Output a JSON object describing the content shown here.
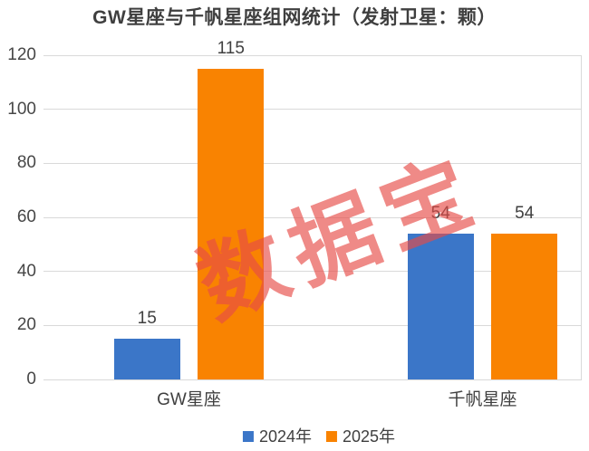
{
  "chart_data": {
    "type": "bar",
    "title": "GW星座与千帆星座组网统计（发射卫星：颗）",
    "categories": [
      "GW星座",
      "千帆星座"
    ],
    "series": [
      {
        "name": "2024年",
        "color": "#3b76c8",
        "values": [
          15,
          54
        ]
      },
      {
        "name": "2025年",
        "color": "#f98301",
        "values": [
          115,
          54
        ]
      }
    ],
    "y_ticks": [
      0,
      20,
      40,
      60,
      80,
      100,
      120
    ],
    "ylim": [
      0,
      120
    ],
    "grid": true,
    "value_labels": true,
    "legend_position": "bottom",
    "watermark": "数据宝",
    "colors": {
      "grid": "#d9d9d9",
      "text": "#3f3f3f",
      "watermark": "rgba(230,75,70,0.65)",
      "bar_2024": "#3b76c8",
      "bar_2025": "#f98301"
    }
  }
}
